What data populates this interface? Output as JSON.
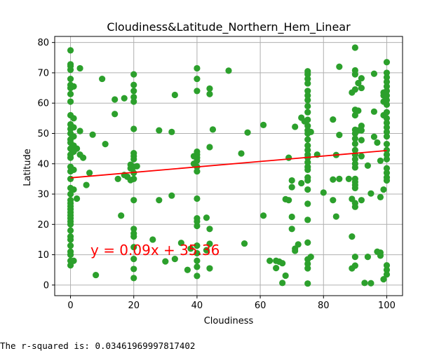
{
  "chart_data": {
    "type": "scatter",
    "title": "Cloudiness&Latitude_Northern_Hem_Linear",
    "xlabel": "Cloudiness",
    "ylabel": "Latitude",
    "xlim": [
      -5,
      105
    ],
    "ylim": [
      -3.5,
      82
    ],
    "xticks": [
      0,
      20,
      40,
      60,
      80,
      100
    ],
    "yticks": [
      0,
      10,
      20,
      30,
      40,
      50,
      60,
      70,
      80
    ],
    "grid": true,
    "point_color": "#2ca02c",
    "line_color": "#ff0000",
    "regression": {
      "slope": 0.09,
      "intercept": 35.36,
      "x_range": [
        0,
        100
      ]
    },
    "equation_label": "y = 0.09x + 35.36",
    "points": [
      [
        0,
        77.4
      ],
      [
        0,
        72.8
      ],
      [
        0,
        72.2
      ],
      [
        0,
        71
      ],
      [
        0,
        68
      ],
      [
        0,
        66
      ],
      [
        0,
        65
      ],
      [
        0,
        63
      ],
      [
        0,
        60.5
      ],
      [
        0,
        56
      ],
      [
        0,
        53
      ],
      [
        0,
        51.5
      ],
      [
        0,
        50
      ],
      [
        0,
        48
      ],
      [
        0,
        47
      ],
      [
        0,
        45
      ],
      [
        0,
        43
      ],
      [
        0,
        42
      ],
      [
        0,
        39
      ],
      [
        0,
        37.5
      ],
      [
        0,
        35
      ],
      [
        0,
        32
      ],
      [
        0,
        30
      ],
      [
        0,
        28
      ],
      [
        0,
        27
      ],
      [
        0,
        26
      ],
      [
        0,
        25
      ],
      [
        0,
        24
      ],
      [
        0,
        23
      ],
      [
        0,
        22
      ],
      [
        0,
        21
      ],
      [
        0,
        20
      ],
      [
        0,
        18
      ],
      [
        0,
        16
      ],
      [
        0,
        15
      ],
      [
        0,
        13
      ],
      [
        0,
        11
      ],
      [
        0,
        10
      ],
      [
        0,
        8
      ],
      [
        0,
        6.5
      ],
      [
        1,
        65.5
      ],
      [
        1,
        55
      ],
      [
        1,
        52
      ],
      [
        1,
        49
      ],
      [
        1,
        46
      ],
      [
        1,
        44
      ],
      [
        1,
        38
      ],
      [
        1,
        31.5
      ],
      [
        1,
        8
      ],
      [
        2,
        45
      ],
      [
        2,
        28.5
      ],
      [
        3,
        71.5
      ],
      [
        3,
        50.8
      ],
      [
        3,
        43
      ],
      [
        4,
        42
      ],
      [
        5,
        33
      ],
      [
        6,
        37
      ],
      [
        7,
        49.6
      ],
      [
        8,
        3.3
      ],
      [
        10,
        68
      ],
      [
        11,
        46.5
      ],
      [
        14,
        61.2
      ],
      [
        14,
        56.4
      ],
      [
        15,
        35
      ],
      [
        16,
        22.9
      ],
      [
        17,
        61.6
      ],
      [
        17,
        36.3
      ],
      [
        18,
        35.7
      ],
      [
        19,
        34.6
      ],
      [
        19,
        39.7
      ],
      [
        19,
        38.5
      ],
      [
        20,
        69.5
      ],
      [
        20,
        66
      ],
      [
        20,
        64
      ],
      [
        20,
        62
      ],
      [
        20,
        60.5
      ],
      [
        20,
        51.5
      ],
      [
        20,
        43.5
      ],
      [
        20,
        42.5
      ],
      [
        20,
        41.5
      ],
      [
        20,
        39
      ],
      [
        20,
        37
      ],
      [
        20,
        35
      ],
      [
        20,
        28
      ],
      [
        20,
        18.5
      ],
      [
        20,
        17
      ],
      [
        20,
        16
      ],
      [
        20,
        12.5
      ],
      [
        20,
        8.6
      ],
      [
        20,
        5.3
      ],
      [
        20,
        2.3
      ],
      [
        21,
        39.2
      ],
      [
        26,
        15
      ],
      [
        28,
        51
      ],
      [
        28,
        28
      ],
      [
        30,
        7.8
      ],
      [
        32,
        50.5
      ],
      [
        32,
        29.5
      ],
      [
        33,
        62.7
      ],
      [
        33,
        8.6
      ],
      [
        35,
        13.9
      ],
      [
        37,
        5
      ],
      [
        38,
        12
      ],
      [
        39,
        42.5
      ],
      [
        39,
        40
      ],
      [
        40,
        71.5
      ],
      [
        40,
        68
      ],
      [
        40,
        64
      ],
      [
        40,
        44
      ],
      [
        40,
        43
      ],
      [
        40,
        42
      ],
      [
        40,
        41
      ],
      [
        40,
        39
      ],
      [
        40,
        37.5
      ],
      [
        40,
        28.5
      ],
      [
        40,
        22
      ],
      [
        40,
        21
      ],
      [
        40,
        19.5
      ],
      [
        40,
        13
      ],
      [
        40,
        10.5
      ],
      [
        40,
        8
      ],
      [
        40,
        6
      ],
      [
        40,
        3
      ],
      [
        43,
        22.2
      ],
      [
        43,
        11.5
      ],
      [
        44,
        64.8
      ],
      [
        44,
        63
      ],
      [
        44,
        45.5
      ],
      [
        44,
        18.5
      ],
      [
        44,
        13.6
      ],
      [
        44,
        5.5
      ],
      [
        45,
        51.3
      ],
      [
        50,
        70.7
      ],
      [
        54,
        43.4
      ],
      [
        55,
        13.7
      ],
      [
        56,
        50.3
      ],
      [
        61,
        52.8
      ],
      [
        61,
        22.9
      ],
      [
        63,
        8
      ],
      [
        65,
        8
      ],
      [
        65,
        5.6
      ],
      [
        66,
        7.7
      ],
      [
        67,
        7.2
      ],
      [
        67,
        0.7
      ],
      [
        68,
        3.1
      ],
      [
        68,
        28.3
      ],
      [
        69,
        28
      ],
      [
        69,
        42
      ],
      [
        70,
        34.5
      ],
      [
        70,
        32.3
      ],
      [
        70,
        22.5
      ],
      [
        70,
        18.5
      ],
      [
        71,
        52.2
      ],
      [
        71,
        12
      ],
      [
        71,
        11.3
      ],
      [
        72,
        13.4
      ],
      [
        73,
        55.2
      ],
      [
        73,
        33.6
      ],
      [
        74,
        54
      ],
      [
        75,
        70.5
      ],
      [
        75,
        69.5
      ],
      [
        75,
        68
      ],
      [
        75,
        66.5
      ],
      [
        75,
        64
      ],
      [
        75,
        62.5
      ],
      [
        75,
        61
      ],
      [
        75,
        59
      ],
      [
        75,
        57
      ],
      [
        75,
        54.5
      ],
      [
        75,
        52.5
      ],
      [
        75,
        51
      ],
      [
        75,
        50
      ],
      [
        75,
        48
      ],
      [
        75,
        46
      ],
      [
        75,
        44.5
      ],
      [
        75,
        43
      ],
      [
        75,
        42
      ],
      [
        75,
        40.5
      ],
      [
        75,
        39
      ],
      [
        75,
        38
      ],
      [
        75,
        35.5
      ],
      [
        75,
        34.5
      ],
      [
        75,
        31.5
      ],
      [
        75,
        26.8
      ],
      [
        75,
        21.5
      ],
      [
        75,
        14
      ],
      [
        75,
        8.5
      ],
      [
        75,
        7
      ],
      [
        75,
        5.5
      ],
      [
        75,
        0.5
      ],
      [
        76,
        50.5
      ],
      [
        76,
        9.3
      ],
      [
        78,
        43
      ],
      [
        80,
        30.5
      ],
      [
        83,
        54.6
      ],
      [
        83,
        34.8
      ],
      [
        83,
        28
      ],
      [
        84,
        42.9
      ],
      [
        84,
        22.6
      ],
      [
        85,
        72
      ],
      [
        85,
        35
      ],
      [
        85,
        49.5
      ],
      [
        88,
        35
      ],
      [
        89,
        28.4
      ],
      [
        89,
        5.5
      ],
      [
        89,
        16
      ],
      [
        89,
        63.5
      ],
      [
        90,
        78.3
      ],
      [
        90,
        70.8
      ],
      [
        90,
        69.5
      ],
      [
        90,
        64.5
      ],
      [
        90,
        57.8
      ],
      [
        90,
        56
      ],
      [
        90,
        51.2
      ],
      [
        90,
        50
      ],
      [
        90,
        48.3
      ],
      [
        90,
        46.6
      ],
      [
        90,
        44.5
      ],
      [
        90,
        43
      ],
      [
        90,
        41.5
      ],
      [
        90,
        40
      ],
      [
        90,
        38.8
      ],
      [
        90,
        35
      ],
      [
        90,
        34
      ],
      [
        90,
        33
      ],
      [
        90,
        32
      ],
      [
        90,
        27
      ],
      [
        90,
        25.8
      ],
      [
        90,
        9.3
      ],
      [
        90,
        6.4
      ],
      [
        91,
        66.6
      ],
      [
        91,
        57.5
      ],
      [
        91,
        51
      ],
      [
        92,
        68.2
      ],
      [
        92,
        65
      ],
      [
        92,
        52.5
      ],
      [
        92,
        51
      ],
      [
        92,
        47.8
      ],
      [
        92,
        42.5
      ],
      [
        92,
        28
      ],
      [
        93,
        0.7
      ],
      [
        94,
        39.4
      ],
      [
        94,
        9.3
      ],
      [
        95,
        30.2
      ],
      [
        95,
        0.6
      ],
      [
        96,
        48.9
      ],
      [
        96,
        57.2
      ],
      [
        96,
        69.7
      ],
      [
        97,
        11
      ],
      [
        97,
        47
      ],
      [
        98,
        29
      ],
      [
        98,
        41
      ],
      [
        98,
        10.7
      ],
      [
        98,
        9.7
      ],
      [
        99,
        31.5
      ],
      [
        99,
        1.9
      ],
      [
        99,
        63.5
      ],
      [
        99,
        62.5
      ],
      [
        99,
        60.5
      ],
      [
        99,
        56
      ],
      [
        100,
        73.5
      ],
      [
        100,
        70
      ],
      [
        100,
        68.5
      ],
      [
        100,
        67
      ],
      [
        100,
        65.5
      ],
      [
        100,
        64
      ],
      [
        100,
        62.5
      ],
      [
        100,
        61
      ],
      [
        100,
        59.5
      ],
      [
        100,
        57
      ],
      [
        100,
        55
      ],
      [
        100,
        53.5
      ],
      [
        100,
        52
      ],
      [
        100,
        50.5
      ],
      [
        100,
        49
      ],
      [
        100,
        46.5
      ],
      [
        100,
        44.5
      ],
      [
        100,
        43
      ],
      [
        100,
        41.5
      ],
      [
        100,
        38.5
      ],
      [
        100,
        37
      ],
      [
        100,
        35.5
      ],
      [
        100,
        34.5
      ],
      [
        100,
        6.5
      ],
      [
        100,
        5
      ],
      [
        100,
        3.5
      ]
    ]
  },
  "console": {
    "rsquared_text": "The r-squared is: 0.03461969997817402"
  }
}
